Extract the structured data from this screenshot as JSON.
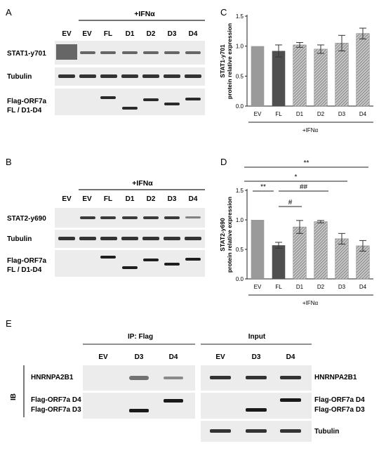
{
  "colors": {
    "blot_bg": "#e9e9e9",
    "band": "#2a2a2a",
    "bar_ev": "#9a9a9a",
    "bar_fl": "#4f4f4f",
    "bar_stripe": "#8a8a8a",
    "axis": "#222222"
  },
  "panel_A": {
    "label": "A",
    "treatment": "+IFNα",
    "lanes": [
      "EV",
      "EV",
      "FL",
      "D1",
      "D2",
      "D3",
      "D4"
    ],
    "rows": [
      "STAT1-y701",
      "Tubulin",
      "Flag-ORF7a\nFL / D1-D4"
    ]
  },
  "panel_B": {
    "label": "B",
    "treatment": "+IFNα",
    "lanes": [
      "EV",
      "EV",
      "FL",
      "D1",
      "D2",
      "D3",
      "D4"
    ],
    "rows": [
      "STAT2-y690",
      "Tubulin",
      "Flag-ORF7a\nFL / D1-D4"
    ]
  },
  "panel_E": {
    "label": "E",
    "ip_title": "IP: Flag",
    "input_title": "Input",
    "ip_lanes": [
      "EV",
      "D3",
      "D4"
    ],
    "input_lanes": [
      "EV",
      "D3",
      "D4"
    ],
    "side_label": "IB",
    "ip_rows": [
      "HNRNPA2B1",
      "Flag-ORF7a D4",
      "Flag-ORF7a D3"
    ],
    "input_rows": [
      "HNRNPA2B1",
      "Flag-ORF7a D4",
      "Flag-ORF7a D3",
      "Tubulin"
    ]
  },
  "chart_data": [
    {
      "type": "bar",
      "panel": "C",
      "categories": [
        "EV",
        "FL",
        "D1",
        "D2",
        "D3",
        "D4"
      ],
      "values": [
        1.0,
        0.92,
        1.02,
        0.95,
        1.05,
        1.21
      ],
      "errors": [
        0.0,
        0.1,
        0.04,
        0.07,
        0.13,
        0.09
      ],
      "ylabel": "STAT1-y701\nprotein relative expression",
      "xlabel": "+IFNα",
      "ylim": [
        0,
        1.5
      ],
      "yticks": [
        "0.0",
        "0.5",
        "1.0",
        "1.5"
      ],
      "grid": false
    },
    {
      "type": "bar",
      "panel": "D",
      "categories": [
        "EV",
        "FL",
        "D1",
        "D2",
        "D3",
        "D4"
      ],
      "values": [
        1.0,
        0.57,
        0.88,
        0.97,
        0.68,
        0.56
      ],
      "errors": [
        0.0,
        0.05,
        0.11,
        0.02,
        0.09,
        0.09
      ],
      "ylabel": "STAT2-y690\nprotein relative expression",
      "xlabel": "+IFNα",
      "ylim": [
        0,
        1.5
      ],
      "yticks": [
        "0.0",
        "0.5",
        "1.0",
        "1.5"
      ],
      "grid": false,
      "significance": [
        {
          "from": "EV",
          "to": "D4",
          "label": "**"
        },
        {
          "from": "EV",
          "to": "D3",
          "label": "*"
        },
        {
          "from": "EV",
          "to": "FL",
          "label": "**"
        },
        {
          "from": "FL",
          "to": "D2",
          "label": "##"
        },
        {
          "from": "FL",
          "to": "D1",
          "label": "#"
        }
      ]
    }
  ]
}
